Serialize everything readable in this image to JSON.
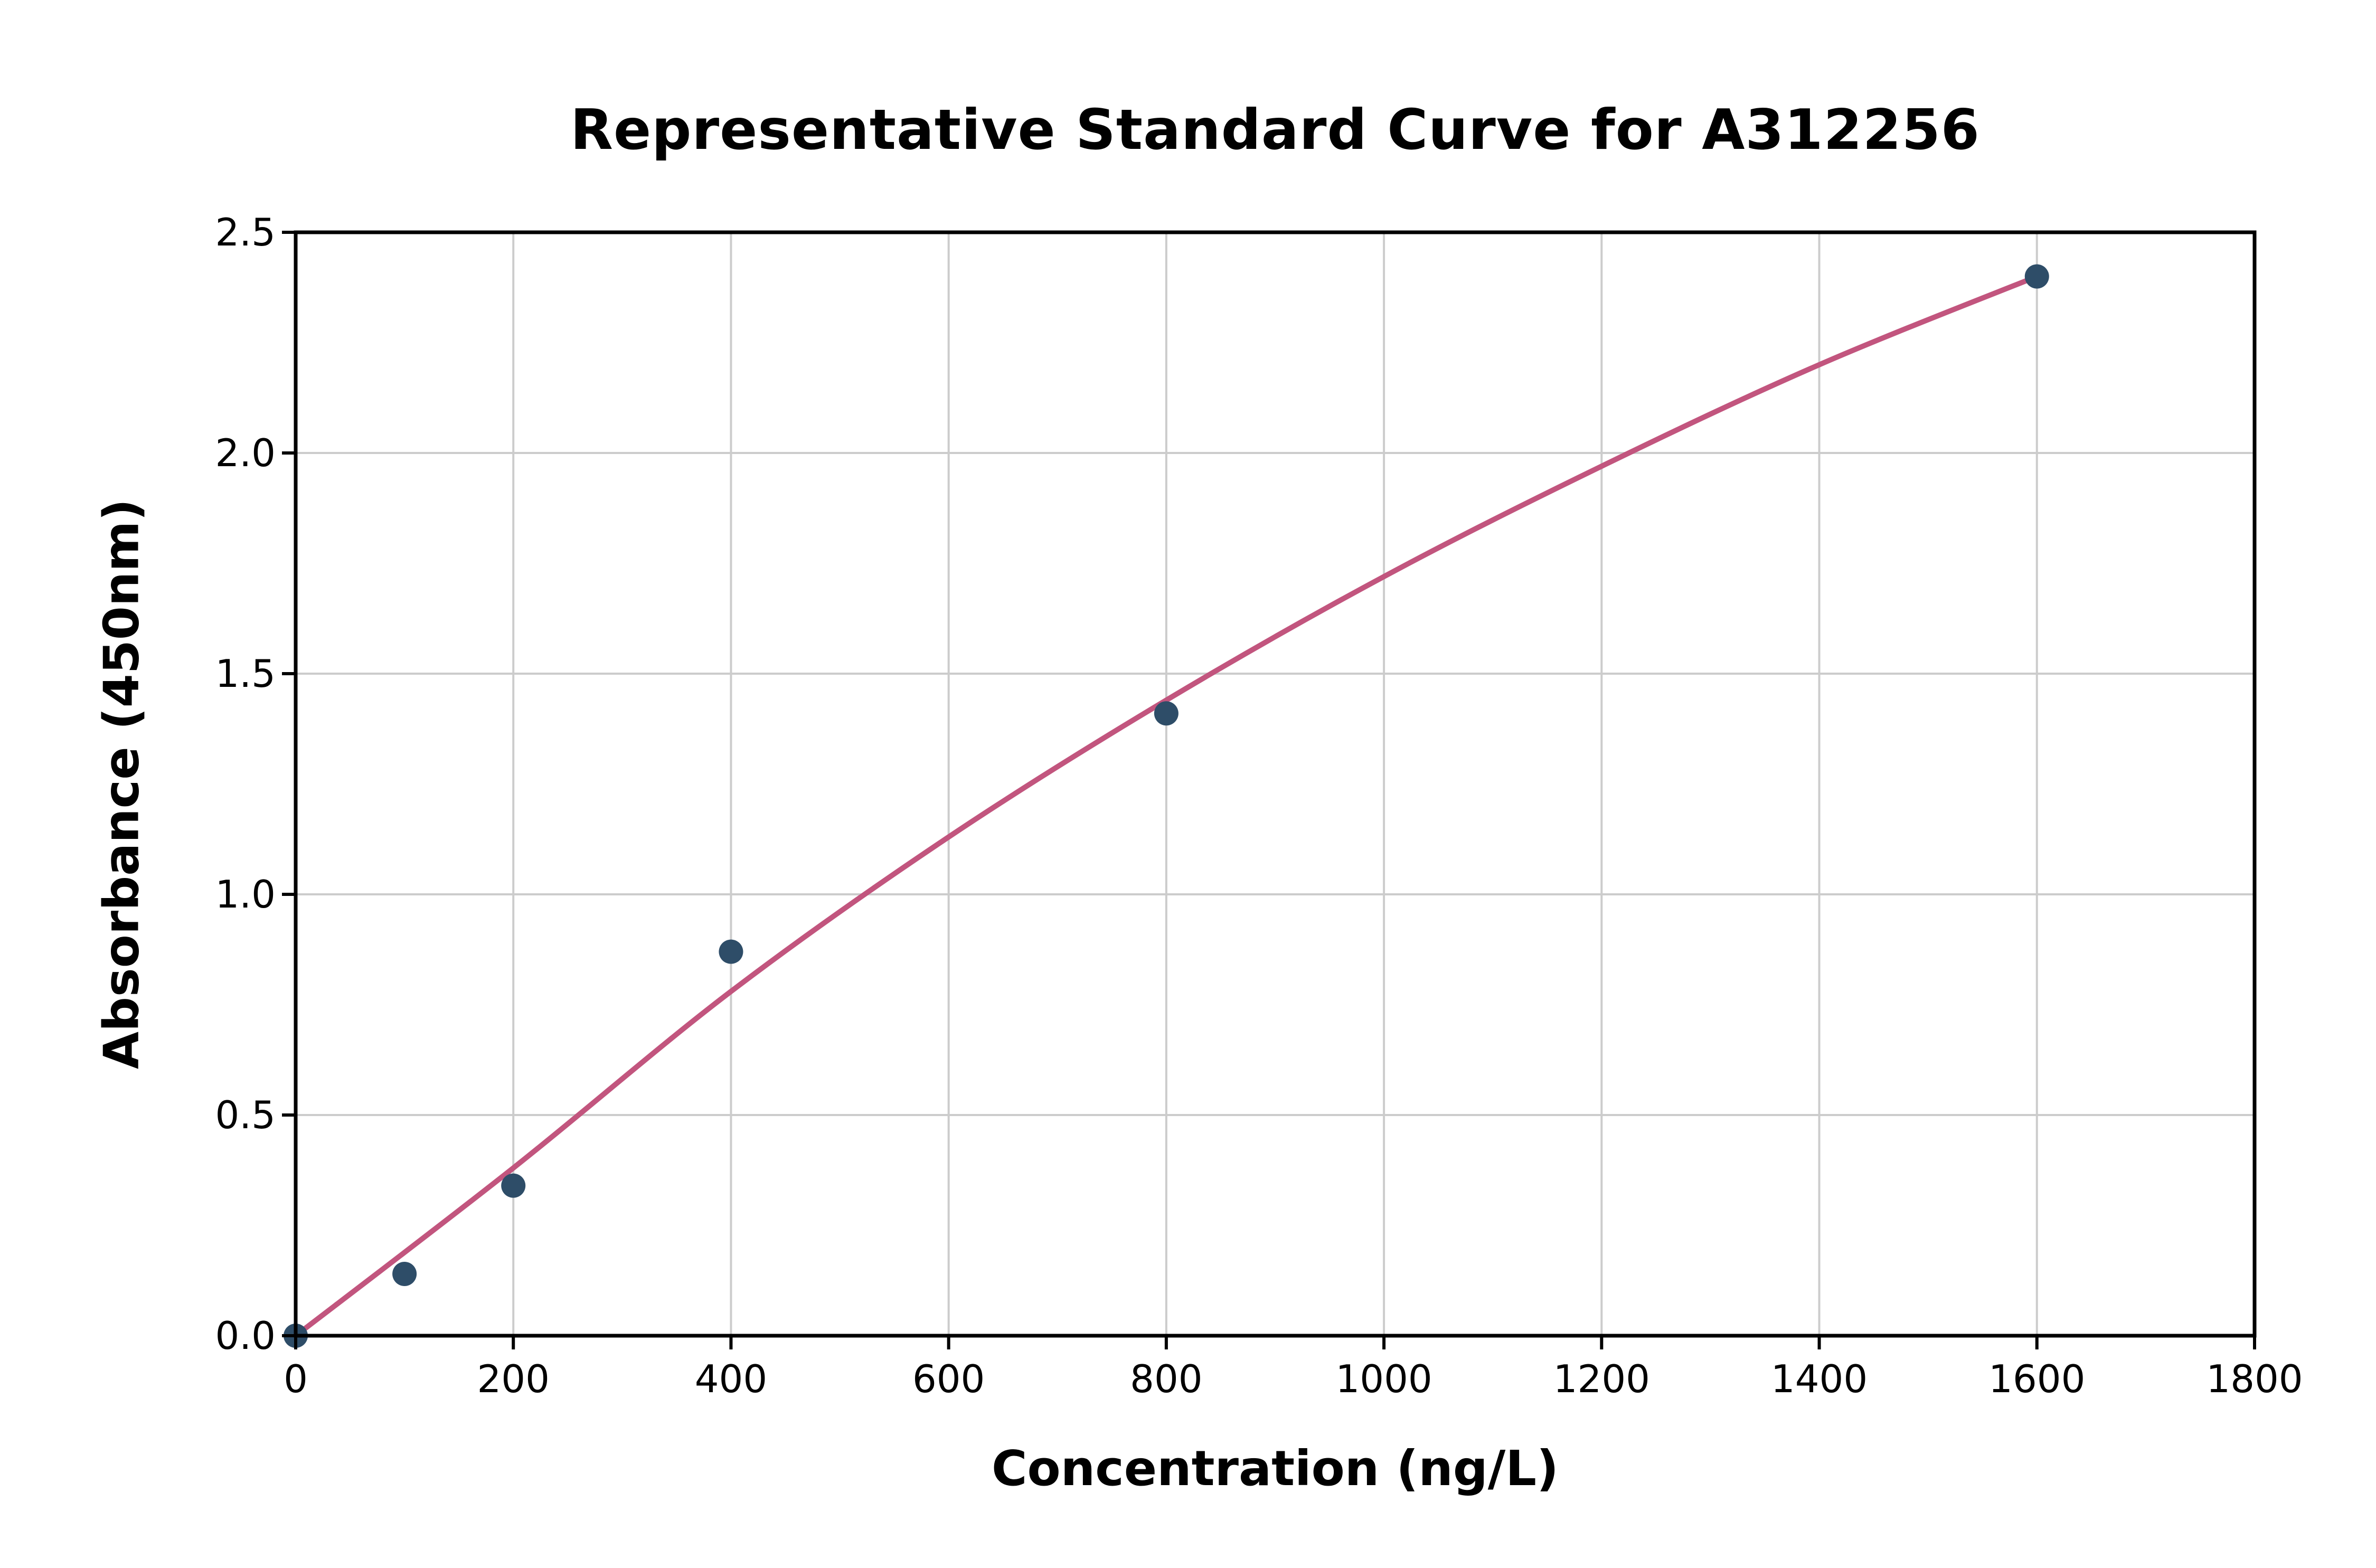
{
  "chart_data": {
    "type": "scatter",
    "title": "Representative Standard Curve for A312256",
    "xlabel": "Concentration (ng/L)",
    "ylabel": "Absorbance (450nm)",
    "xlim": [
      0,
      1800
    ],
    "ylim": [
      0,
      2.5
    ],
    "grid": true,
    "legend": "none",
    "x_tick_values": [
      0,
      200,
      400,
      600,
      800,
      1000,
      1200,
      1400,
      1600,
      1800
    ],
    "x_tick_labels": [
      "0",
      "200",
      "400",
      "600",
      "800",
      "1000",
      "1200",
      "1400",
      "1600",
      "1800"
    ],
    "y_tick_values": [
      0,
      0.5,
      1.0,
      1.5,
      2.0,
      2.5
    ],
    "y_tick_labels": [
      "0.0",
      "0.5",
      "1.0",
      "1.5",
      "2.0",
      "2.5"
    ],
    "points": {
      "x": [
        0,
        100,
        200,
        400,
        800,
        1600
      ],
      "y": [
        0.0,
        0.14,
        0.34,
        0.87,
        1.41,
        2.4
      ]
    },
    "fit_curve": {
      "x": [
        0,
        200,
        400,
        600,
        800,
        1000,
        1200,
        1400,
        1600
      ],
      "y": [
        0.0,
        0.38,
        0.78,
        1.13,
        1.44,
        1.72,
        1.97,
        2.2,
        2.4
      ]
    },
    "colors": {
      "marker": "#2e4d68",
      "line": "#c2557e",
      "grid": "#cccccc",
      "axis": "#000000",
      "background": "#ffffff"
    }
  }
}
